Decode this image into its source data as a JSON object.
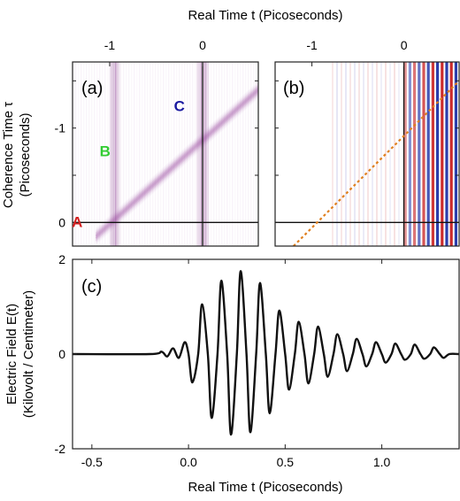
{
  "figure": {
    "top_axis_label": "Real Time t (Picoseconds)",
    "left_axis_label_line1": "Coherence Time τ",
    "left_axis_label_line2": "(Picoseconds)",
    "bottom_axis_label": "Real Time t (Picoseconds)",
    "right_axis_label_line1": "Electric Field E(t)",
    "right_axis_label_line2": "(Kilovolt / Centimeter)"
  },
  "chart_data": [
    {
      "type": "heatmap",
      "panel_label": "(a)",
      "xlabel": "Real Time t (Picoseconds)",
      "ylabel": "Coherence Time τ (Picoseconds)",
      "x_ticks": [
        "-1",
        "0"
      ],
      "y_ticks": [
        "-1",
        "0"
      ],
      "xlim": [
        -1.4,
        0.6
      ],
      "ylim": [
        0.25,
        -1.7
      ],
      "colormap": [
        "#ffffff",
        "#b070b0"
      ],
      "annotations": [
        {
          "text": "A",
          "color": "#d42020",
          "t": -1.35,
          "tau": 0.05
        },
        {
          "text": "B",
          "color": "#33cc33",
          "t": -1.05,
          "tau": -0.7
        },
        {
          "text": "C",
          "color": "#1a1aa0",
          "t": -0.25,
          "tau": -1.18
        }
      ],
      "features": [
        {
          "name": "vertical band",
          "t": -0.95
        },
        {
          "name": "vertical band",
          "t": 0.0
        },
        {
          "name": "diagonal band",
          "t_start": -1.15,
          "tau_start": 0.15,
          "t_end": 0.65,
          "tau_end": -1.45
        }
      ]
    },
    {
      "type": "heatmap",
      "panel_label": "(b)",
      "xlabel": "Real Time t (Picoseconds)",
      "x_ticks": [
        "-1",
        "0"
      ],
      "xlim": [
        -1.4,
        0.6
      ],
      "ylim": [
        0.25,
        -1.7
      ],
      "colormap": [
        "#2030a0",
        "#ffffff",
        "#d02020"
      ],
      "features": [
        {
          "name": "dotted diagonal",
          "color": "#e08020",
          "t_start": -1.2,
          "tau_start": 0.25,
          "t_end": 0.6,
          "tau_end": -1.5
        },
        {
          "name": "oscillation region",
          "t_start": 0.0,
          "t_end": 0.6
        }
      ]
    },
    {
      "type": "line",
      "panel_label": "(c)",
      "xlabel": "Real Time t (Picoseconds)",
      "ylabel": "Electric Field E(t) (Kilovolt / Centimeter)",
      "xlim": [
        -0.6,
        1.4
      ],
      "ylim": [
        -2,
        2
      ],
      "x_ticks": [
        "-0.5",
        "0.0",
        "0.5",
        "1.0"
      ],
      "y_ticks": [
        "2",
        "0",
        "-2"
      ],
      "series": [
        {
          "x": [
            -0.6,
            -0.2,
            -0.14,
            -0.11,
            -0.08,
            -0.05,
            -0.02,
            0.0,
            0.02,
            0.05,
            0.07,
            0.1,
            0.12,
            0.15,
            0.17,
            0.2,
            0.22,
            0.25,
            0.27,
            0.3,
            0.32,
            0.35,
            0.37,
            0.4,
            0.42,
            0.45,
            0.47,
            0.5,
            0.52,
            0.55,
            0.57,
            0.6,
            0.62,
            0.65,
            0.67,
            0.7,
            0.72,
            0.75,
            0.77,
            0.8,
            0.82,
            0.85,
            0.87,
            0.9,
            0.92,
            0.95,
            0.97,
            1.0,
            1.02,
            1.05,
            1.07,
            1.1,
            1.12,
            1.15,
            1.17,
            1.2,
            1.22,
            1.25,
            1.27,
            1.3,
            1.32,
            1.35,
            1.4
          ],
          "y": [
            0.0,
            0.0,
            0.05,
            -0.05,
            0.12,
            -0.08,
            0.25,
            0.0,
            -0.6,
            0.0,
            1.05,
            0.0,
            -1.35,
            0.0,
            1.55,
            0.0,
            -1.7,
            0.0,
            1.75,
            0.0,
            -1.65,
            0.0,
            1.5,
            0.0,
            -1.25,
            0.0,
            0.92,
            0.0,
            -0.75,
            0.0,
            0.68,
            0.0,
            -0.62,
            0.0,
            0.58,
            0.0,
            -0.48,
            0.0,
            0.42,
            0.0,
            -0.36,
            0.0,
            0.32,
            0.0,
            -0.26,
            0.0,
            0.25,
            0.0,
            -0.18,
            0.0,
            0.22,
            0.0,
            -0.12,
            0.0,
            0.2,
            0.0,
            -0.1,
            0.0,
            0.14,
            0.0,
            -0.08,
            0.0,
            0.0
          ]
        }
      ]
    }
  ]
}
